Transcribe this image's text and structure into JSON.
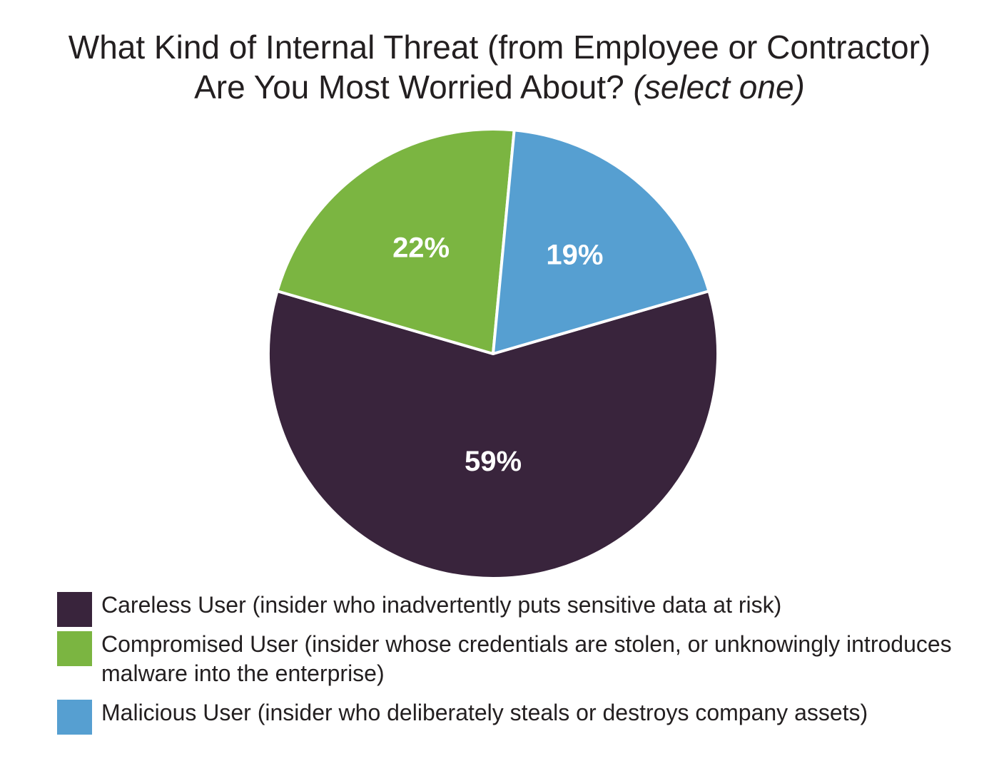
{
  "title": {
    "line1": "What Kind of Internal Threat (from Employee or Contractor)",
    "line2": "Are You Most Worried About?",
    "line2_em": "(select one)"
  },
  "chart_data": {
    "type": "pie",
    "title": "What Kind of Internal Threat (from Employee or Contractor) Are You Most Worried About? (select one)",
    "legend_position": "bottom",
    "slices": [
      {
        "name": "Careless User (insider who inadvertently puts sensitive data at risk)",
        "value": 59,
        "label": "59%",
        "color": "#39243c"
      },
      {
        "name": "Compromised User (insider whose credentials are stolen, or unknowingly introduces malware into the enterprise)",
        "value": 22,
        "label": "22%",
        "color": "#7bb541"
      },
      {
        "name": "Malicious User (insider who deliberately steals or destroys company assets)",
        "value": 19,
        "label": "19%",
        "color": "#569fd1"
      }
    ]
  }
}
